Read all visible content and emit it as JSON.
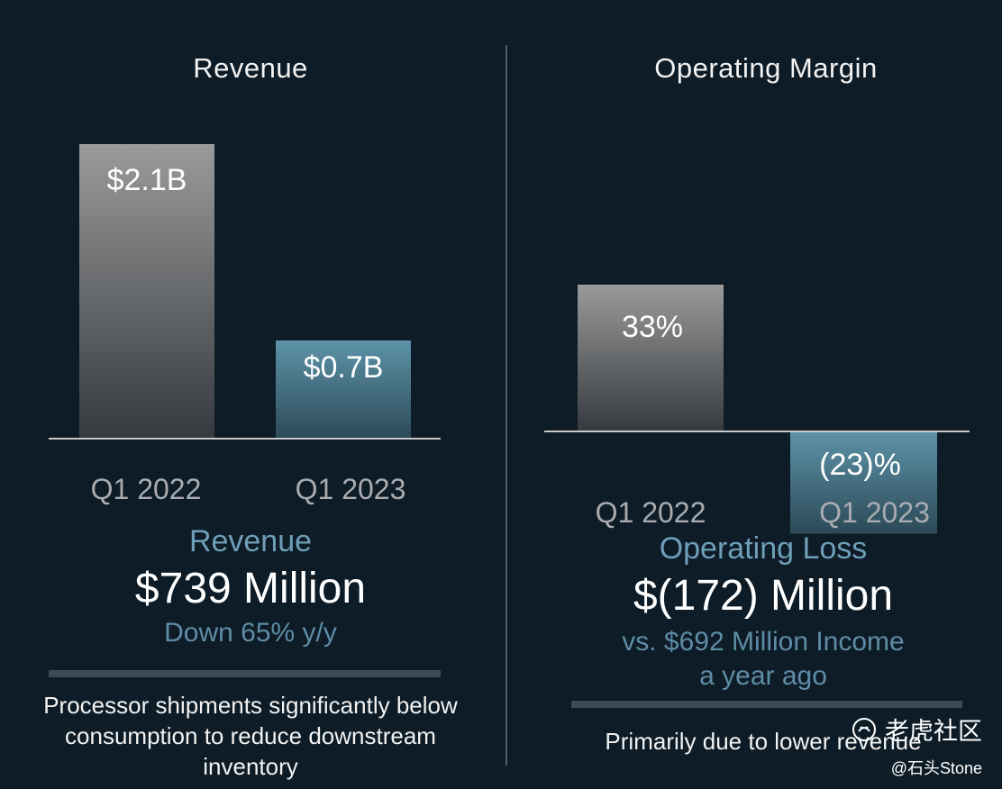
{
  "chart_data": [
    {
      "type": "bar",
      "title": "Revenue",
      "categories": [
        "Q1 2022",
        "Q1 2023"
      ],
      "values": [
        2.1,
        0.7
      ],
      "value_labels": [
        "$2.1B",
        "$0.7B"
      ],
      "ylim": [
        0,
        2.1
      ],
      "colors": [
        "#8e8e8e",
        "#4e7e92"
      ]
    },
    {
      "type": "bar",
      "title": "Operating Margin",
      "categories": [
        "Q1 2022",
        "Q1 2023"
      ],
      "values": [
        33,
        -23
      ],
      "value_labels": [
        "33%",
        "(23)%"
      ],
      "ylim": [
        -23,
        33
      ],
      "colors": [
        "#8e8e8e",
        "#4e7e92"
      ]
    }
  ],
  "left": {
    "metric_name": "Revenue",
    "metric_value": "$739 Million",
    "metric_sub": "Down 65% y/y",
    "note": "Processor shipments significantly below consumption to reduce downstream inventory"
  },
  "right": {
    "metric_name": "Operating Loss",
    "metric_value": "$(172) Million",
    "metric_sub_line1": "vs. $692 Million Income",
    "metric_sub_line2": "a year ago",
    "note": "Primarily due to lower revenue"
  },
  "watermark": {
    "site": "老虎社区",
    "author": "@石头Stone",
    "icon": "tiger-community-logo-icon"
  }
}
